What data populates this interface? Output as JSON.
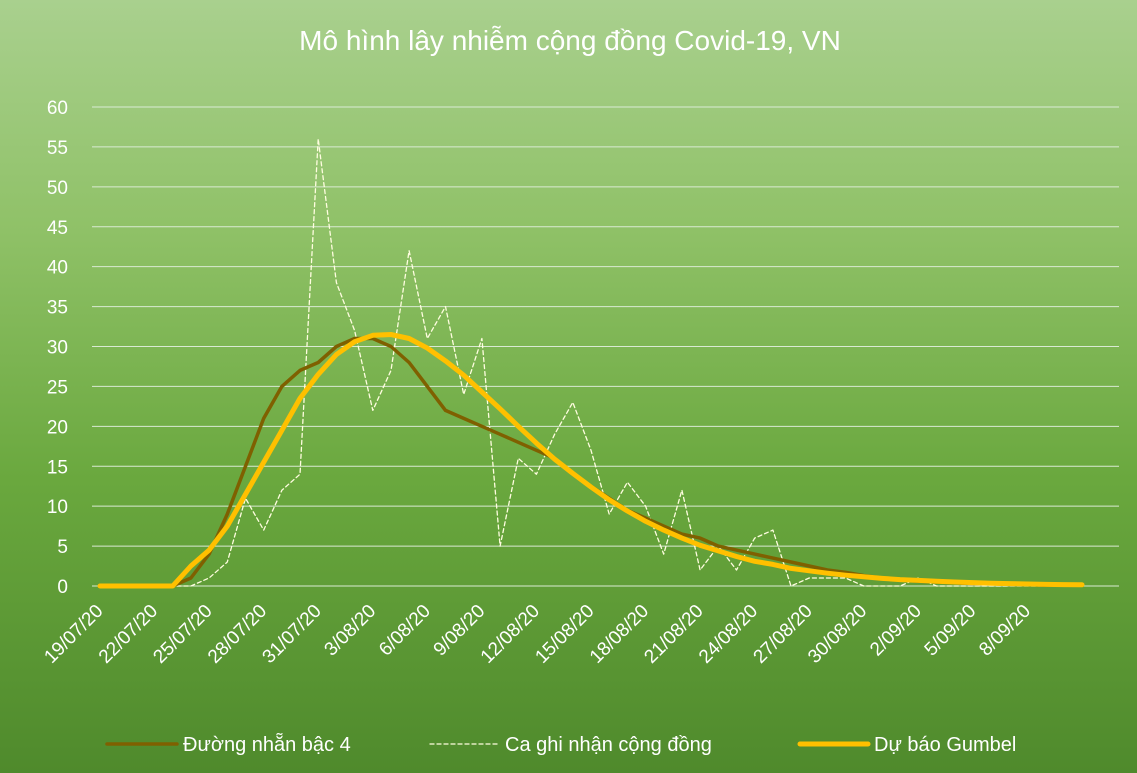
{
  "chart_data": {
    "type": "line",
    "title": "Mô hình lây nhiễm cộng đồng Covid-19, VN",
    "xlabel": "",
    "ylabel": "",
    "ylim": [
      0,
      60
    ],
    "yticks": [
      0,
      5,
      10,
      15,
      20,
      25,
      30,
      35,
      40,
      45,
      50,
      55,
      60
    ],
    "grid": true,
    "legend_position": "bottom",
    "x": [
      "19/07/20",
      "20/07/20",
      "21/07/20",
      "22/07/20",
      "23/07/20",
      "24/07/20",
      "25/07/20",
      "26/07/20",
      "27/07/20",
      "28/07/20",
      "29/07/20",
      "30/07/20",
      "31/07/20",
      "1/08/20",
      "2/08/20",
      "3/08/20",
      "4/08/20",
      "5/08/20",
      "6/08/20",
      "7/08/20",
      "8/08/20",
      "9/08/20",
      "10/08/20",
      "11/08/20",
      "12/08/20",
      "13/08/20",
      "14/08/20",
      "15/08/20",
      "16/08/20",
      "17/08/20",
      "18/08/20",
      "19/08/20",
      "20/08/20",
      "21/08/20",
      "22/08/20",
      "23/08/20",
      "24/08/20",
      "25/08/20",
      "26/08/20",
      "27/08/20",
      "28/08/20",
      "29/08/20",
      "30/08/20",
      "31/08/20",
      "1/09/20",
      "2/09/20",
      "3/09/20",
      "4/09/20",
      "5/09/20",
      "6/09/20",
      "7/09/20",
      "8/09/20",
      "9/09/20",
      "10/09/20",
      "11/09/20"
    ],
    "x_tick_labels": [
      "19/07/20",
      "22/07/20",
      "25/07/20",
      "28/07/20",
      "31/07/20",
      "3/08/20",
      "6/08/20",
      "9/08/20",
      "12/08/20",
      "15/08/20",
      "18/08/20",
      "21/08/20",
      "24/08/20",
      "27/08/20",
      "30/08/20",
      "2/09/20",
      "5/09/20",
      "8/09/20"
    ],
    "series": [
      {
        "name": "Đường nhẵn bậc 4",
        "color": "#7f6000",
        "style": "solid",
        "values": [
          0,
          0,
          0,
          0,
          0,
          1,
          4,
          9,
          15,
          21,
          25,
          27,
          28,
          30,
          31,
          31,
          30,
          28,
          25,
          22,
          21,
          20,
          19,
          18,
          17,
          16,
          14,
          12.5,
          11,
          9.5,
          8.5,
          7.5,
          6.5,
          6,
          5,
          4.5,
          4,
          3.5,
          3,
          2.5,
          2,
          1.7,
          1.3,
          1,
          0.8,
          0.6,
          0.5,
          0.4,
          0.3,
          0.3,
          0.2,
          0.2,
          0.1,
          0.1,
          0.1
        ]
      },
      {
        "name": "Ca ghi nhận cộng đồng",
        "color": "#fffde0",
        "style": "dashed",
        "values": [
          0,
          0,
          0,
          0,
          0,
          0,
          1,
          3,
          11,
          7,
          12,
          14,
          56,
          38,
          32,
          22,
          27,
          42,
          31,
          35,
          24,
          31,
          5,
          16,
          14,
          19,
          23,
          17,
          9,
          13,
          10,
          4,
          12,
          2,
          5,
          2,
          6,
          7,
          0,
          1,
          1,
          1,
          0,
          0,
          0,
          1,
          0,
          0,
          0,
          0,
          0,
          0,
          0,
          0,
          0
        ]
      },
      {
        "name": "Dự báo Gumbel",
        "color": "#ffc000",
        "style": "solid-thick",
        "values": [
          0,
          0,
          0,
          0,
          0,
          2.5,
          4.5,
          7.5,
          11.5,
          15.5,
          19.5,
          23.5,
          26.5,
          29,
          30.6,
          31.4,
          31.5,
          31,
          29.8,
          28.2,
          26.4,
          24.3,
          22.2,
          20,
          17.9,
          15.9,
          14.1,
          12.4,
          10.8,
          9.4,
          8.1,
          7,
          6,
          5.1,
          4.4,
          3.7,
          3.1,
          2.7,
          2.2,
          1.9,
          1.6,
          1.35,
          1.15,
          0.95,
          0.8,
          0.7,
          0.6,
          0.5,
          0.42,
          0.35,
          0.3,
          0.25,
          0.2,
          0.18,
          0.15
        ]
      }
    ]
  }
}
